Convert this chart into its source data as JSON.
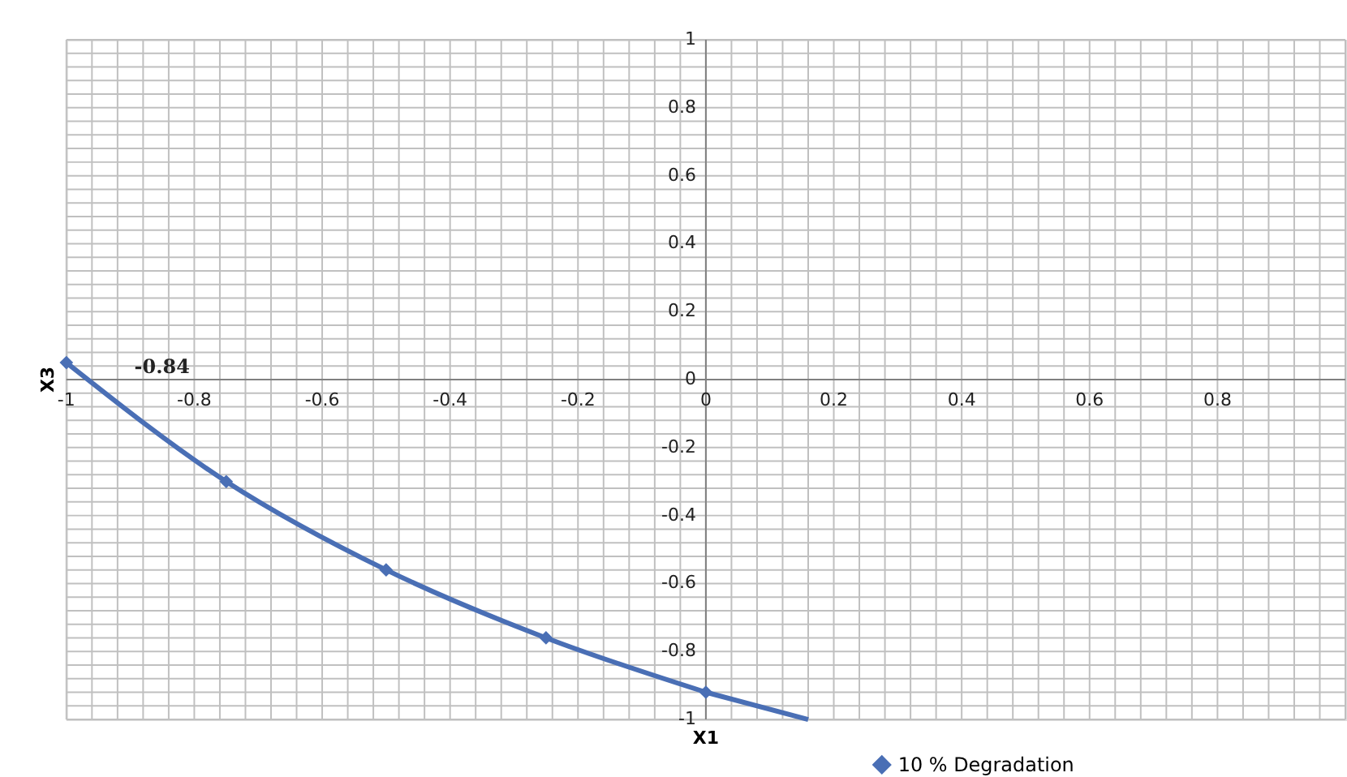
{
  "chart_data": {
    "type": "line",
    "xlabel": "X1",
    "ylabel": "X3",
    "series": [
      {
        "name": "10 % Degradation",
        "color": "#4a6fb5",
        "x": [
          -1,
          -0.75,
          -0.5,
          -0.25,
          0
        ],
        "values": [
          0.05,
          -0.3,
          -0.56,
          -0.76,
          -0.92
        ],
        "marker": "diamond"
      },
      {
        "color": "#4a6fb5",
        "x": [
          0,
          0.16
        ],
        "values": [
          -0.92,
          -1
        ],
        "marker": "none"
      }
    ],
    "annotations": [
      "-0.84"
    ],
    "xlim": [
      -1,
      1
    ],
    "ylim": [
      -1,
      1
    ],
    "xticks": [
      -1,
      {
        "value": -0.96,
        "label": null
      },
      {
        "value": -0.92,
        "label": null
      },
      {
        "value": -0.88,
        "label": null
      },
      {
        "value": -0.84,
        "label": null
      },
      -0.8,
      {
        "value": -0.76,
        "label": null
      },
      {
        "value": -0.72,
        "label": null
      },
      {
        "value": -0.68,
        "label": null
      },
      {
        "value": -0.64,
        "label": null
      },
      -0.6,
      {
        "value": -0.56,
        "label": null
      },
      {
        "value": -0.52,
        "label": null
      },
      {
        "value": -0.48,
        "label": null
      },
      {
        "value": -0.44,
        "label": null
      },
      -0.4,
      {
        "value": -0.36,
        "label": null
      },
      {
        "value": -0.32,
        "label": null
      },
      {
        "value": -0.28,
        "label": null
      },
      {
        "value": -0.24,
        "label": null
      },
      -0.2,
      {
        "value": -0.16,
        "label": null
      },
      {
        "value": -0.12,
        "label": null
      },
      {
        "value": -0.08,
        "label": null
      },
      {
        "value": -0.04,
        "label": null
      },
      0,
      {
        "value": 0.04,
        "label": null
      },
      {
        "value": 0.08,
        "label": null
      },
      {
        "value": 0.12,
        "label": null
      },
      {
        "value": 0.16,
        "label": null
      },
      0.2,
      {
        "value": 0.24,
        "label": null
      },
      {
        "value": 0.28,
        "label": null
      },
      {
        "value": 0.32,
        "label": null
      },
      {
        "value": 0.36,
        "label": null
      },
      0.4,
      {
        "value": 0.44,
        "label": null
      },
      {
        "value": 0.48,
        "label": null
      },
      {
        "value": 0.52,
        "label": null
      },
      {
        "value": 0.56,
        "label": null
      },
      0.6,
      {
        "value": 0.64,
        "label": null
      },
      {
        "value": 0.68,
        "label": null
      },
      {
        "value": 0.72,
        "label": null
      },
      {
        "value": 0.76,
        "label": null
      },
      0.8,
      {
        "value": 0.84,
        "label": null
      },
      {
        "value": 0.88,
        "label": null
      },
      {
        "value": 0.92,
        "label": null
      },
      {
        "value": 0.96,
        "label": null
      },
      {
        "value": 1,
        "label": null
      }
    ],
    "yticks": [
      -1,
      {
        "value": -0.96,
        "label": null
      },
      {
        "value": -0.92,
        "label": null
      },
      {
        "value": -0.88,
        "label": null
      },
      {
        "value": -0.84,
        "label": null
      },
      -0.8,
      {
        "value": -0.76,
        "label": null
      },
      {
        "value": -0.72,
        "label": null
      },
      {
        "value": -0.68,
        "label": null
      },
      {
        "value": -0.64,
        "label": null
      },
      -0.6,
      {
        "value": -0.56,
        "label": null
      },
      {
        "value": -0.52,
        "label": null
      },
      {
        "value": -0.48,
        "label": null
      },
      {
        "value": -0.44,
        "label": null
      },
      -0.4,
      {
        "value": -0.36,
        "label": null
      },
      {
        "value": -0.32,
        "label": null
      },
      {
        "value": -0.28,
        "label": null
      },
      {
        "value": -0.24,
        "label": null
      },
      -0.2,
      {
        "value": -0.16,
        "label": null
      },
      {
        "value": -0.12,
        "label": null
      },
      {
        "value": -0.08,
        "label": null
      },
      {
        "value": -0.04,
        "label": null
      },
      0,
      {
        "value": 0.04,
        "label": null
      },
      {
        "value": 0.08,
        "label": null
      },
      {
        "value": 0.12,
        "label": null
      },
      {
        "value": 0.16,
        "label": null
      },
      0.2,
      {
        "value": 0.24,
        "label": null
      },
      {
        "value": 0.28,
        "label": null
      },
      {
        "value": 0.32,
        "label": null
      },
      {
        "value": 0.36,
        "label": null
      },
      0.4,
      {
        "value": 0.44,
        "label": null
      },
      {
        "value": 0.48,
        "label": null
      },
      {
        "value": 0.52,
        "label": null
      },
      {
        "value": 0.56,
        "label": null
      },
      0.6,
      {
        "value": 0.64,
        "label": null
      },
      {
        "value": 0.68,
        "label": null
      },
      {
        "value": 0.72,
        "label": null
      },
      {
        "value": 0.76,
        "label": null
      },
      0.8,
      {
        "value": 0.84,
        "label": null
      },
      {
        "value": 0.88,
        "label": null
      },
      {
        "value": 0.92,
        "label": null
      },
      {
        "value": 0.96,
        "label": null
      },
      1
    ],
    "grid": true,
    "legend": "bottom right",
    "line_style": "solid"
  }
}
